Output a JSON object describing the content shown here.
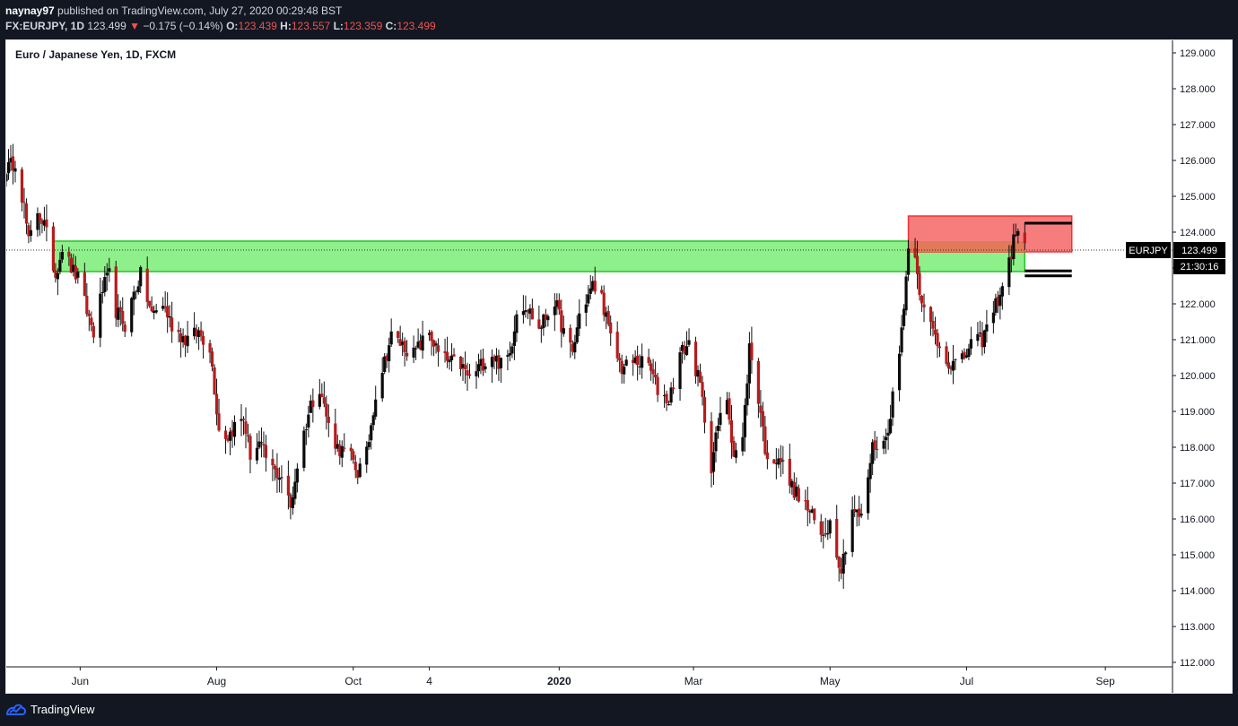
{
  "header": {
    "author": "naynay97",
    "published": "published on TradingView.com, July 27, 2020 00:29:48 BST",
    "symbol_interval": "FX:EURJPY, 1D",
    "last": "123.499",
    "change": "−0.175 (−0.14%)",
    "o_label": "O:",
    "o_value": "123.439",
    "h_label": "H:",
    "h_value": "123.557",
    "l_label": "L:",
    "l_value": "123.359",
    "c_label": "C:",
    "c_value": "123.499"
  },
  "legend": {
    "title": "Euro / Japanese Yen, 1D, FXCM"
  },
  "footer": {
    "brand": "TradingView",
    "icon": "tradingview-logo-icon"
  },
  "colors": {
    "up": "#0a0a0a",
    "down": "#b71c1c",
    "demand_zone": "#8ef08a",
    "demand_border": "#22c322",
    "supply_zone": "#f77d7d",
    "supply_border": "#ee3333",
    "overlap_zone": "#e07a58"
  },
  "chart_data": {
    "type": "candlestick",
    "symbol": "EURJPY",
    "ylim": [
      112,
      129.4
    ],
    "y_ticks": [
      "129.000",
      "128.000",
      "127.000",
      "126.000",
      "125.000",
      "124.000",
      "123.000",
      "122.000",
      "121.000",
      "120.000",
      "119.000",
      "118.000",
      "117.000",
      "116.000",
      "115.000",
      "114.000",
      "113.000",
      "112.000"
    ],
    "x_ticks": [
      "Jun",
      "Aug",
      "Oct",
      "4",
      "2020",
      "Mar",
      "May",
      "Jul",
      "Sep"
    ],
    "x_tick_dates": [
      "2019-06-01",
      "2019-08-01",
      "2019-10-01",
      "2019-11-04",
      "2020-01-01",
      "2020-03-01",
      "2020-05-01",
      "2020-07-01",
      "2020-09-01"
    ],
    "last_price": {
      "label": "EURJPY",
      "value": "123.499",
      "countdown": "21:30:16"
    },
    "path": [
      [
        "2019-04-30",
        125.8
      ],
      [
        "2019-05-03",
        126.0
      ],
      [
        "2019-05-07",
        124.7
      ],
      [
        "2019-05-09",
        123.7
      ],
      [
        "2019-05-13",
        124.6
      ],
      [
        "2019-05-16",
        124.2
      ],
      [
        "2019-05-21",
        122.8
      ],
      [
        "2019-05-24",
        123.6
      ],
      [
        "2019-05-28",
        123.0
      ],
      [
        "2019-05-31",
        122.7
      ],
      [
        "2019-06-04",
        121.8
      ],
      [
        "2019-06-07",
        121.2
      ],
      [
        "2019-06-11",
        122.4
      ],
      [
        "2019-06-14",
        122.8
      ],
      [
        "2019-06-17",
        121.8
      ],
      [
        "2019-06-21",
        121.4
      ],
      [
        "2019-06-25",
        122.3
      ],
      [
        "2019-06-28",
        122.8
      ],
      [
        "2019-07-03",
        121.7
      ],
      [
        "2019-07-08",
        122.0
      ],
      [
        "2019-07-12",
        121.4
      ],
      [
        "2019-07-18",
        121.0
      ],
      [
        "2019-07-24",
        121.2
      ],
      [
        "2019-07-29",
        120.8
      ],
      [
        "2019-08-02",
        118.5
      ],
      [
        "2019-08-06",
        118.3
      ],
      [
        "2019-08-09",
        118.6
      ],
      [
        "2019-08-13",
        118.8
      ],
      [
        "2019-08-16",
        117.8
      ],
      [
        "2019-08-20",
        118.1
      ],
      [
        "2019-08-23",
        117.7
      ],
      [
        "2019-08-27",
        117.3
      ],
      [
        "2019-08-30",
        117.2
      ],
      [
        "2019-09-03",
        116.3
      ],
      [
        "2019-09-06",
        117.5
      ],
      [
        "2019-09-09",
        118.4
      ],
      [
        "2019-09-12",
        119.2
      ],
      [
        "2019-09-16",
        119.7
      ],
      [
        "2019-09-20",
        118.6
      ],
      [
        "2019-09-24",
        118.0
      ],
      [
        "2019-09-30",
        117.7
      ],
      [
        "2019-10-03",
        117.3
      ],
      [
        "2019-10-07",
        117.8
      ],
      [
        "2019-10-11",
        119.5
      ],
      [
        "2019-10-15",
        120.4
      ],
      [
        "2019-10-18",
        121.1
      ],
      [
        "2019-10-22",
        120.9
      ],
      [
        "2019-10-28",
        120.6
      ],
      [
        "2019-11-04",
        121.2
      ],
      [
        "2019-11-08",
        120.6
      ],
      [
        "2019-11-12",
        120.4
      ],
      [
        "2019-11-18",
        120.3
      ],
      [
        "2019-11-22",
        119.9
      ],
      [
        "2019-11-27",
        120.3
      ],
      [
        "2019-12-02",
        120.6
      ],
      [
        "2019-12-06",
        120.3
      ],
      [
        "2019-12-10",
        120.6
      ],
      [
        "2019-12-13",
        121.8
      ],
      [
        "2019-12-17",
        122.0
      ],
      [
        "2019-12-23",
        121.3
      ],
      [
        "2019-12-30",
        122.1
      ],
      [
        "2020-01-03",
        121.2
      ],
      [
        "2020-01-07",
        120.6
      ],
      [
        "2020-01-10",
        121.7
      ],
      [
        "2020-01-16",
        122.5
      ],
      [
        "2020-01-20",
        122.2
      ],
      [
        "2020-01-24",
        121.0
      ],
      [
        "2020-01-29",
        120.2
      ],
      [
        "2020-02-04",
        120.4
      ],
      [
        "2020-02-10",
        120.3
      ],
      [
        "2020-02-14",
        119.6
      ],
      [
        "2020-02-19",
        119.3
      ],
      [
        "2020-02-24",
        120.6
      ],
      [
        "2020-02-28",
        120.9
      ],
      [
        "2020-03-04",
        119.7
      ],
      [
        "2020-03-09",
        117.5
      ],
      [
        "2020-03-12",
        118.6
      ],
      [
        "2020-03-16",
        119.4
      ],
      [
        "2020-03-19",
        117.8
      ],
      [
        "2020-03-23",
        118.2
      ],
      [
        "2020-03-26",
        120.8
      ],
      [
        "2020-03-31",
        119.0
      ],
      [
        "2020-04-03",
        117.5
      ],
      [
        "2020-04-08",
        117.8
      ],
      [
        "2020-04-13",
        117.0
      ],
      [
        "2020-04-17",
        116.6
      ],
      [
        "2020-04-22",
        116.2
      ],
      [
        "2020-04-27",
        115.5
      ],
      [
        "2020-05-01",
        115.9
      ],
      [
        "2020-05-06",
        114.6
      ],
      [
        "2020-05-11",
        116.3
      ],
      [
        "2020-05-15",
        116.0
      ],
      [
        "2020-05-20",
        118.0
      ],
      [
        "2020-05-26",
        118.2
      ],
      [
        "2020-06-01",
        120.6
      ],
      [
        "2020-06-05",
        123.5
      ],
      [
        "2020-06-08",
        123.5
      ],
      [
        "2020-06-11",
        121.9
      ],
      [
        "2020-06-15",
        121.4
      ],
      [
        "2020-06-19",
        120.8
      ],
      [
        "2020-06-24",
        120.3
      ],
      [
        "2020-06-29",
        120.4
      ],
      [
        "2020-07-03",
        120.9
      ],
      [
        "2020-07-08",
        121.0
      ],
      [
        "2020-07-13",
        121.8
      ],
      [
        "2020-07-17",
        122.5
      ],
      [
        "2020-07-21",
        123.4
      ],
      [
        "2020-07-23",
        124.1
      ],
      [
        "2020-07-27",
        123.5
      ]
    ],
    "zones": [
      {
        "name": "demand",
        "from": "2019-05-20",
        "to": "2020-07-27",
        "low": 122.9,
        "high": 123.75
      },
      {
        "name": "supply",
        "from": "2020-06-05",
        "to": "2020-08-17",
        "low": 123.45,
        "high": 124.45
      },
      {
        "name": "overlap",
        "from": "2020-06-05",
        "to": "2020-07-27",
        "low": 123.45,
        "high": 123.75
      }
    ],
    "lines": [
      {
        "from": "2020-07-27",
        "to": "2020-08-17",
        "value": 124.25
      },
      {
        "from": "2020-07-27",
        "to": "2020-08-17",
        "value": 122.92
      },
      {
        "from": "2020-07-27",
        "to": "2020-08-17",
        "value": 122.78
      }
    ]
  }
}
